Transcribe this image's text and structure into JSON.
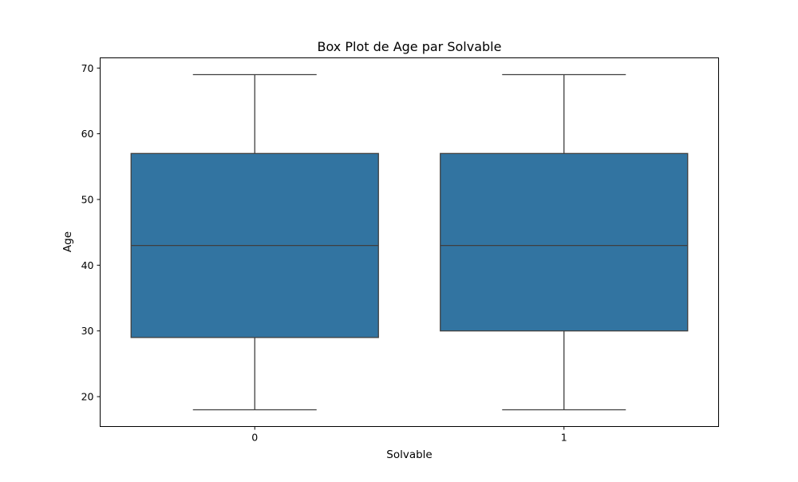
{
  "chart_data": {
    "type": "box",
    "title": "Box Plot de Age par Solvable",
    "xlabel": "Solvable",
    "ylabel": "Age",
    "categories": [
      "0",
      "1"
    ],
    "boxes": [
      {
        "category": "0",
        "whisker_low": 18,
        "q1": 29,
        "median": 43,
        "q3": 57,
        "whisker_high": 69
      },
      {
        "category": "1",
        "whisker_low": 18,
        "q1": 30,
        "median": 43,
        "q3": 57,
        "whisker_high": 69
      }
    ],
    "ylim": [
      15.45,
      71.55
    ],
    "yticks": [
      "20",
      "30",
      "40",
      "50",
      "60",
      "70"
    ],
    "box_color": "#3274a1",
    "line_color": "#3f3f3f",
    "grid": false,
    "legend": false
  }
}
